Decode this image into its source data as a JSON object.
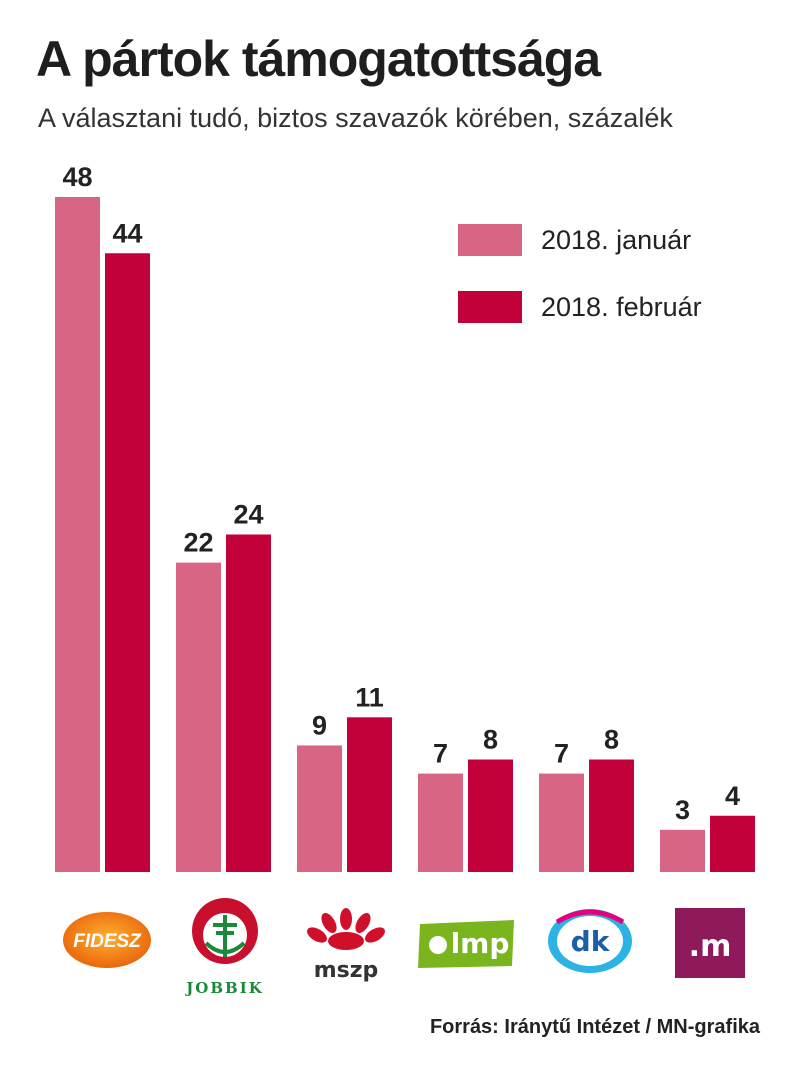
{
  "title": "A pártok támogatottsága",
  "subtitle": "A választani tudó, biztos szavazók körében, százalék",
  "legend": [
    {
      "label": "2018. január",
      "color": "#d96585"
    },
    {
      "label": "2018. február",
      "color": "#c2003a"
    }
  ],
  "logos": {
    "fidesz": "FIDESZ",
    "jobbik": "JOBBIK",
    "mszp": "mszp",
    "lmp": "lmp",
    "dk": "dk",
    "momentum": ".m"
  },
  "source": "Forrás: Iránytű Intézet / MN-grafika",
  "chart_data": {
    "type": "bar",
    "title": "A pártok támogatottsága",
    "subtitle": "A választani tudó, biztos szavazók körében, százalék",
    "categories": [
      "Fidesz",
      "Jobbik",
      "MSZP",
      "LMP",
      "DK",
      "Momentum"
    ],
    "series": [
      {
        "name": "2018. január",
        "color": "#d96585",
        "values": [
          48,
          22,
          9,
          7,
          7,
          3
        ]
      },
      {
        "name": "2018. február",
        "color": "#c2003a",
        "values": [
          44,
          24,
          11,
          8,
          8,
          4
        ]
      }
    ],
    "xlabel": "",
    "ylabel": "százalék",
    "ylim": [
      0,
      48
    ],
    "grid": false,
    "legend_position": "top-right"
  }
}
